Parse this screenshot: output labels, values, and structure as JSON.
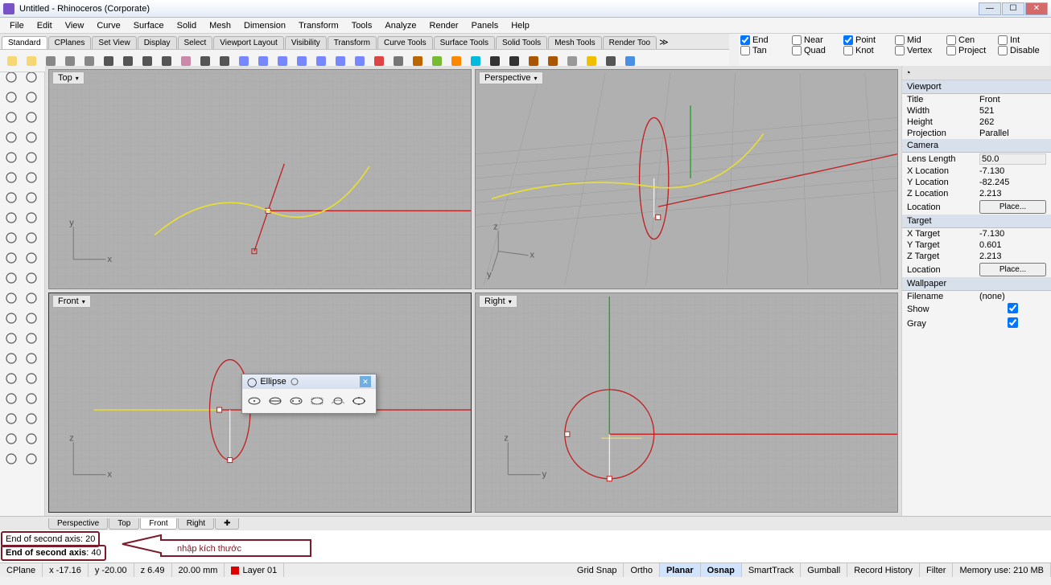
{
  "window_title": "Untitled - Rhinoceros (Corporate)",
  "menu": [
    "File",
    "Edit",
    "View",
    "Curve",
    "Surface",
    "Solid",
    "Mesh",
    "Dimension",
    "Transform",
    "Tools",
    "Analyze",
    "Render",
    "Panels",
    "Help"
  ],
  "tabs": [
    "Standard",
    "CPlanes",
    "Set View",
    "Display",
    "Select",
    "Viewport Layout",
    "Visibility",
    "Transform",
    "Curve Tools",
    "Surface Tools",
    "Solid Tools",
    "Mesh Tools",
    "Render Too"
  ],
  "active_tab": "Standard",
  "osnaps": [
    {
      "label": "End",
      "checked": true
    },
    {
      "label": "Tan",
      "checked": false
    },
    {
      "label": "Near",
      "checked": false
    },
    {
      "label": "Quad",
      "checked": false
    },
    {
      "label": "Point",
      "checked": true
    },
    {
      "label": "Knot",
      "checked": false
    },
    {
      "label": "Mid",
      "checked": false
    },
    {
      "label": "Vertex",
      "checked": false
    },
    {
      "label": "Cen",
      "checked": false
    },
    {
      "label": "Project",
      "checked": false
    },
    {
      "label": "Int",
      "checked": false
    },
    {
      "label": "Disable",
      "checked": false
    }
  ],
  "viewports": {
    "top_left": "Top",
    "top_right": "Perspective",
    "bottom_left": "Front",
    "bottom_right": "Right",
    "active": "Front"
  },
  "panel": {
    "viewport": {
      "Title": "Front",
      "Width": "521",
      "Height": "262",
      "Projection": "Parallel"
    },
    "camera": {
      "Lens Length": "50.0",
      "X Location": "-7.130",
      "Y Location": "-82.245",
      "Z Location": "2.213",
      "Location": "Place..."
    },
    "target": {
      "X Target": "-7.130",
      "Y Target": "0.601",
      "Z Target": "2.213",
      "Location": "Place..."
    },
    "wallpaper": {
      "Filename": "(none)",
      "Show": true,
      "Gray": true
    }
  },
  "view_tabs": [
    "Perspective",
    "Top",
    "Front",
    "Right"
  ],
  "view_tab_active": "Front",
  "command": {
    "line1_label": "End of second axis",
    "line1_val": "20",
    "line2_label": "End of second axis",
    "line2_val": "40",
    "callout_text": "nhập kích thước"
  },
  "status": {
    "cplane": "CPlane",
    "x": "x -17.16",
    "y": "y -20.00",
    "z": "z 6.49",
    "units": "20.00 mm",
    "layer": "Layer 01",
    "toggles": [
      {
        "label": "Grid Snap",
        "on": false
      },
      {
        "label": "Ortho",
        "on": false
      },
      {
        "label": "Planar",
        "on": true
      },
      {
        "label": "Osnap",
        "on": true
      },
      {
        "label": "SmartTrack",
        "on": false
      },
      {
        "label": "Gumball",
        "on": false
      },
      {
        "label": "Record History",
        "on": false
      },
      {
        "label": "Filter",
        "on": false
      }
    ],
    "memory": "Memory use: 210 MB"
  },
  "ellipse_popup": {
    "title": "Ellipse"
  },
  "colors": {
    "curve_yellow": "#e8e030",
    "axis_red": "#c02020",
    "axis_green": "#20a020",
    "axis_blue": "#2030c0",
    "grid": "#969696",
    "callout_border": "#7a1a2a",
    "callout_text": "#7a1a2a"
  }
}
